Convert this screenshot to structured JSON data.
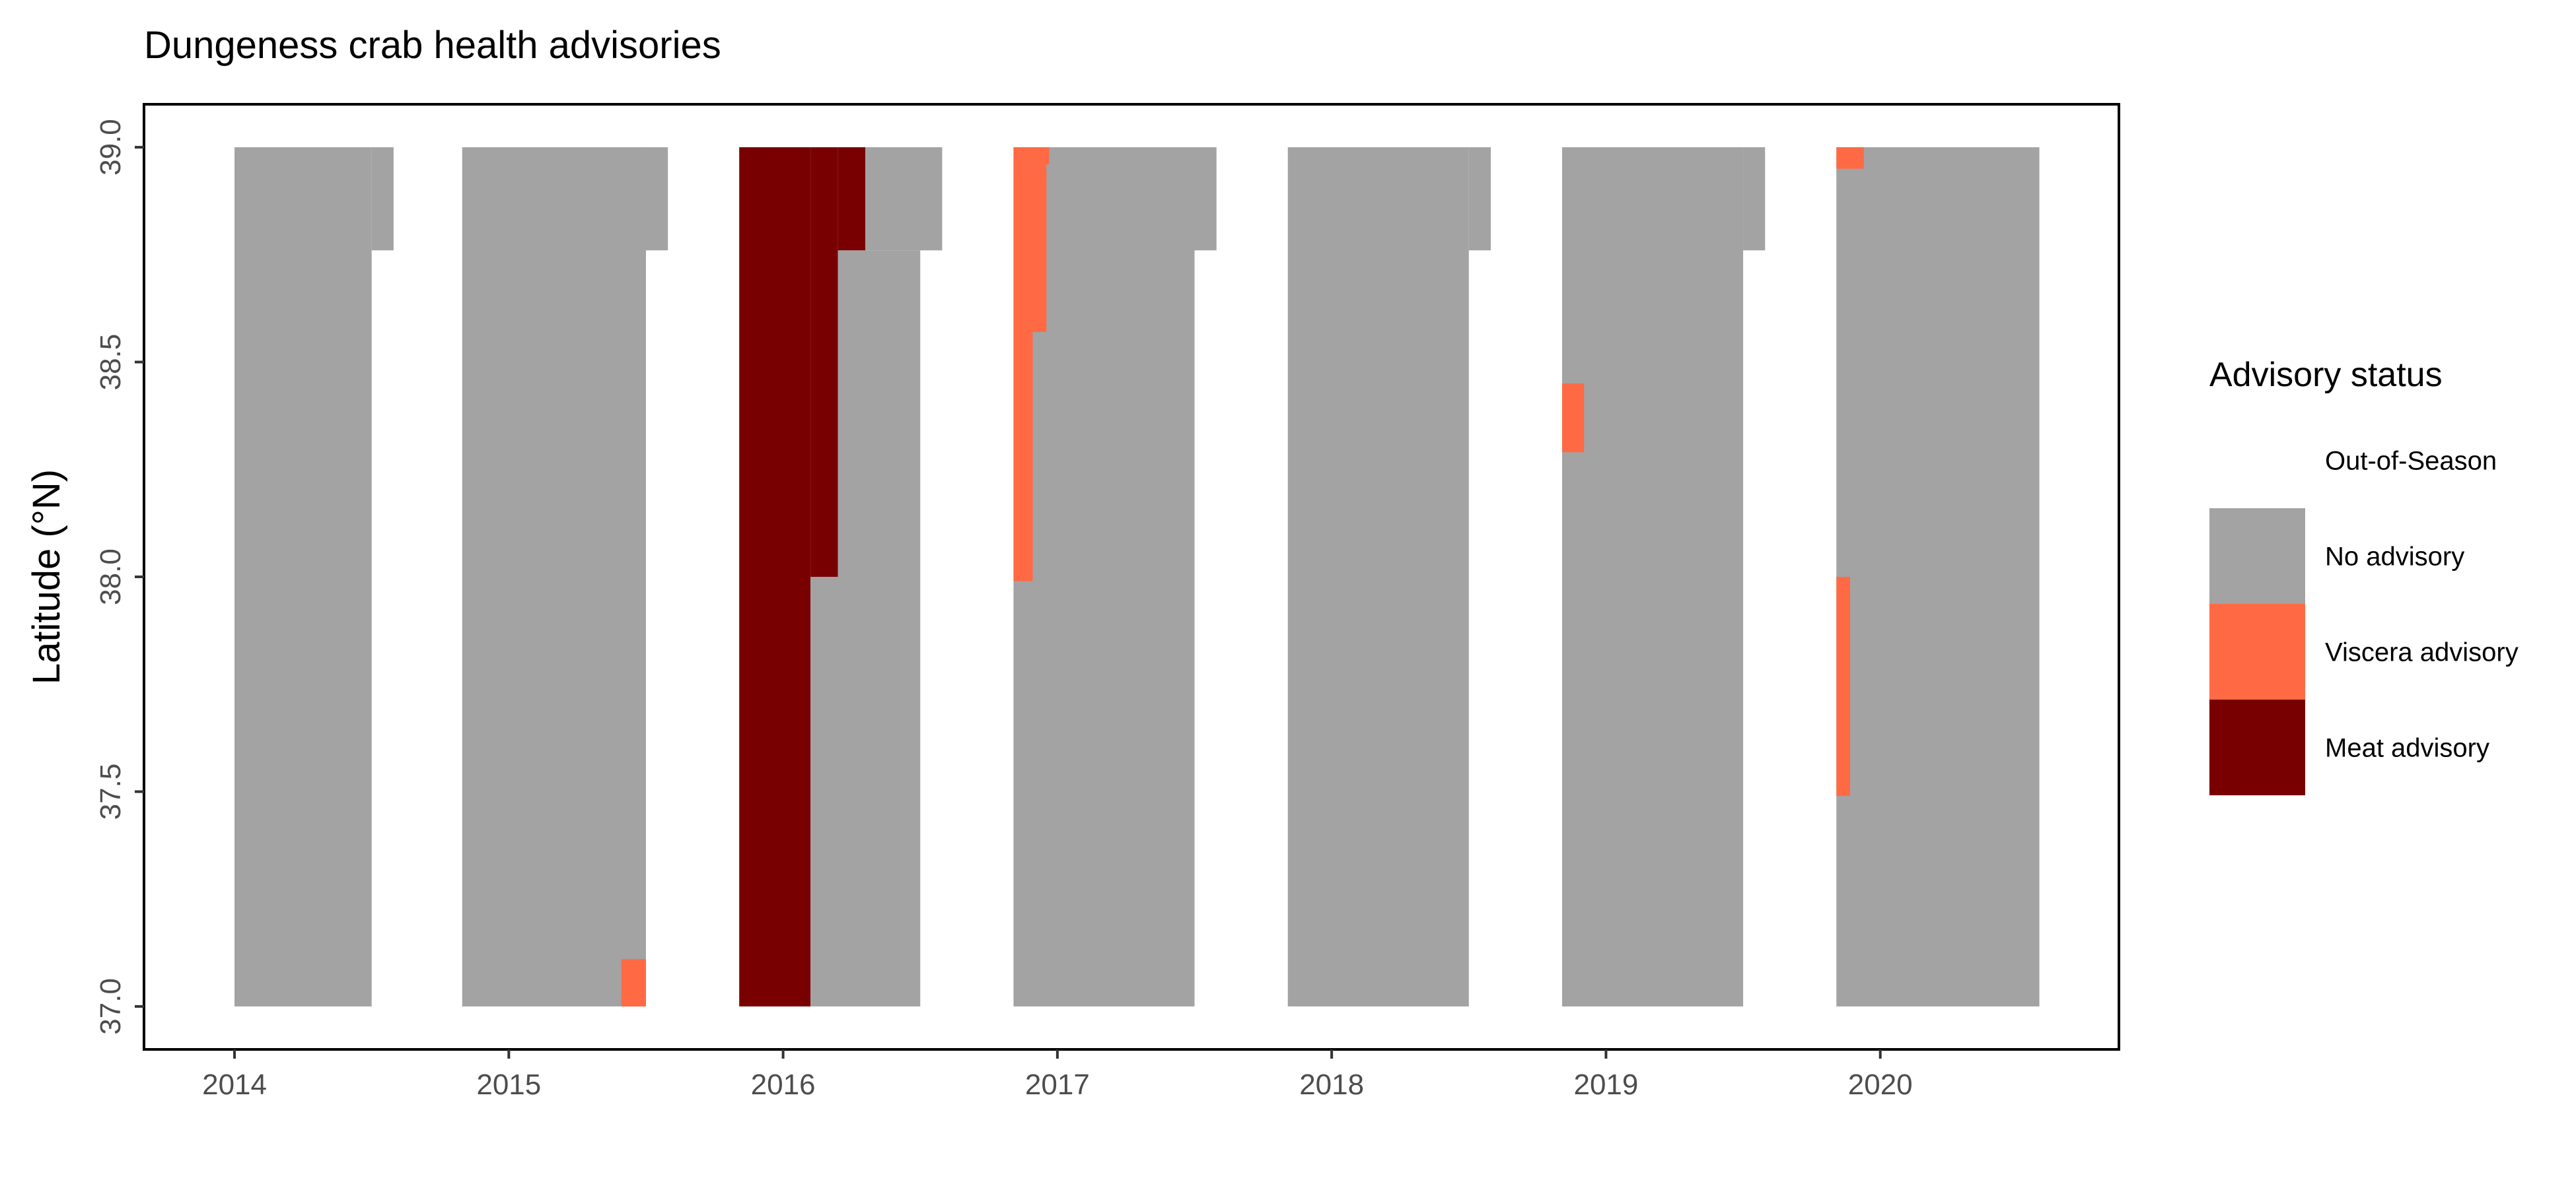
{
  "chart_data": {
    "type": "heatmap",
    "title": "Dungeness crab health advisories",
    "xlabel": "",
    "ylabel": "Latitude (°N)",
    "xlim": [
      2013.67,
      2020.87
    ],
    "ylim": [
      36.9,
      39.1
    ],
    "x_ticks": [
      2014,
      2015,
      2016,
      2017,
      2018,
      2019,
      2020
    ],
    "y_ticks": [
      37.0,
      37.5,
      38.0,
      38.5,
      39.0
    ],
    "grid": false,
    "legend": {
      "title": "Advisory status",
      "placement": "right",
      "entries": [
        {
          "label": "Out-of-Season",
          "color": "#FFFFFF"
        },
        {
          "label": "No advisory",
          "color": "#A3A3A3"
        },
        {
          "label": "Viscera advisory",
          "color": "#FF6A45"
        },
        {
          "label": "Meat advisory",
          "color": "#780000"
        }
      ]
    },
    "status_colors": {
      "No advisory": "#A3A3A3",
      "Viscera advisory": "#FF6A45",
      "Meat advisory": "#780000"
    },
    "regions": [
      {
        "status": "No advisory",
        "x": [
          2014.0,
          2014.5
        ],
        "y": [
          37.0,
          39.0
        ]
      },
      {
        "status": "No advisory",
        "x": [
          2014.5,
          2014.58
        ],
        "y": [
          38.76,
          39.0
        ]
      },
      {
        "status": "No advisory",
        "x": [
          2014.83,
          2015.5
        ],
        "y": [
          37.0,
          39.0
        ]
      },
      {
        "status": "No advisory",
        "x": [
          2015.5,
          2015.58
        ],
        "y": [
          38.76,
          39.0
        ]
      },
      {
        "status": "Viscera advisory",
        "x": [
          2015.41,
          2015.5
        ],
        "y": [
          37.0,
          37.11
        ]
      },
      {
        "status": "Meat advisory",
        "x": [
          2015.84,
          2016.1
        ],
        "y": [
          37.0,
          39.0
        ]
      },
      {
        "status": "No advisory",
        "x": [
          2016.1,
          2016.5
        ],
        "y": [
          37.0,
          38.0
        ]
      },
      {
        "status": "Meat advisory",
        "x": [
          2016.1,
          2016.2
        ],
        "y": [
          38.0,
          39.0
        ]
      },
      {
        "status": "No advisory",
        "x": [
          2016.2,
          2016.5
        ],
        "y": [
          38.0,
          38.76
        ]
      },
      {
        "status": "Meat advisory",
        "x": [
          2016.2,
          2016.3
        ],
        "y": [
          38.76,
          39.0
        ]
      },
      {
        "status": "No advisory",
        "x": [
          2016.3,
          2016.58
        ],
        "y": [
          38.76,
          39.0
        ]
      },
      {
        "status": "No advisory",
        "x": [
          2016.84,
          2017.5
        ],
        "y": [
          37.0,
          39.0
        ]
      },
      {
        "status": "No advisory",
        "x": [
          2017.5,
          2017.58
        ],
        "y": [
          38.76,
          39.0
        ]
      },
      {
        "status": "Viscera advisory",
        "x": [
          2016.84,
          2016.91
        ],
        "y": [
          37.99,
          38.57
        ]
      },
      {
        "status": "Viscera advisory",
        "x": [
          2016.84,
          2016.96
        ],
        "y": [
          38.57,
          38.96
        ]
      },
      {
        "status": "Viscera advisory",
        "x": [
          2016.84,
          2016.97
        ],
        "y": [
          38.96,
          39.0
        ]
      },
      {
        "status": "No advisory",
        "x": [
          2017.84,
          2018.5
        ],
        "y": [
          37.0,
          39.0
        ]
      },
      {
        "status": "No advisory",
        "x": [
          2018.5,
          2018.58
        ],
        "y": [
          38.76,
          39.0
        ]
      },
      {
        "status": "No advisory",
        "x": [
          2018.84,
          2019.5
        ],
        "y": [
          37.0,
          39.0
        ]
      },
      {
        "status": "No advisory",
        "x": [
          2019.5,
          2019.58
        ],
        "y": [
          38.76,
          39.0
        ]
      },
      {
        "status": "Viscera advisory",
        "x": [
          2018.84,
          2018.92
        ],
        "y": [
          38.29,
          38.45
        ]
      },
      {
        "status": "No advisory",
        "x": [
          2019.84,
          2020.58
        ],
        "y": [
          37.0,
          39.0
        ]
      },
      {
        "status": "Viscera advisory",
        "x": [
          2019.84,
          2019.94
        ],
        "y": [
          38.95,
          39.0
        ]
      },
      {
        "status": "Viscera advisory",
        "x": [
          2019.84,
          2019.89
        ],
        "y": [
          37.49,
          38.0
        ]
      }
    ]
  }
}
